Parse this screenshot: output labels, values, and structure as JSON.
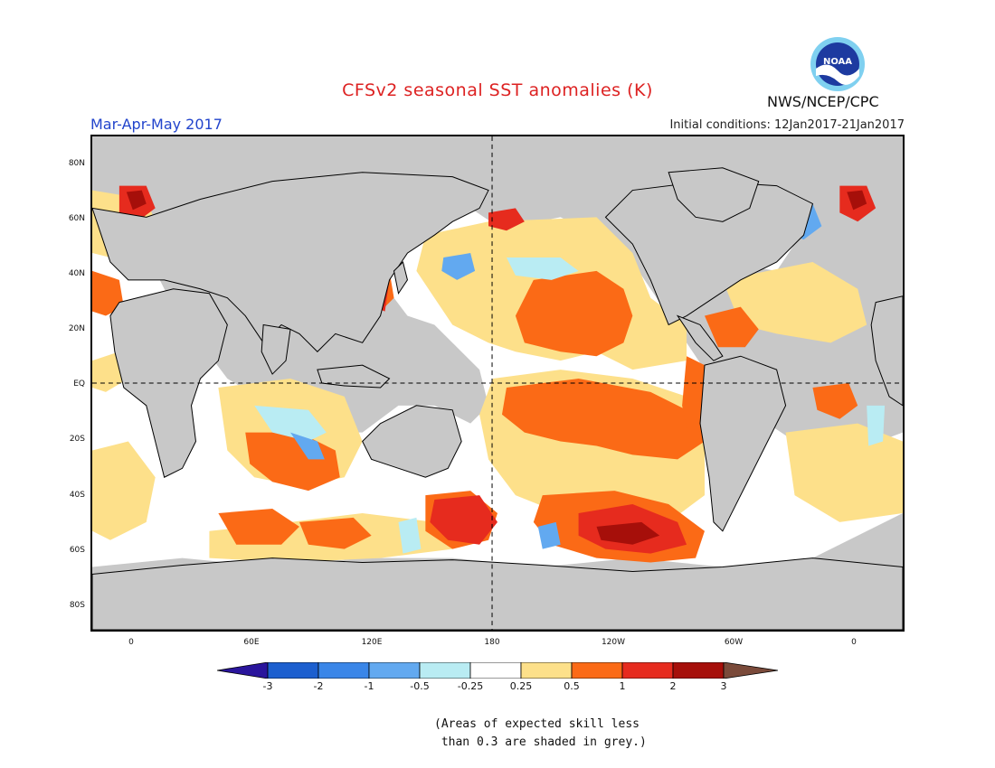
{
  "header": {
    "title": "CFSv2 seasonal SST anomalies (K)",
    "season": "Mar-Apr-May 2017",
    "initial_conditions": "Initial conditions: 12Jan2017-21Jan2017",
    "org": "NWS/NCEP/CPC",
    "logo_text": "NOAA"
  },
  "colors": {
    "title": "#dd2222",
    "season": "#2244cc",
    "land": "#c8c8c8",
    "ocean_neutral": "#ffffff",
    "light_orange": "#fde08a",
    "orange": "#fb6a16",
    "red": "#e62b1e",
    "dark_red": "#a60f0a",
    "light_blue": "#b9ecf3",
    "mid_blue": "#5fa7ef",
    "blue": "#3278e6"
  },
  "map": {
    "lat_labels": [
      "80N",
      "60N",
      "40N",
      "20N",
      "EQ",
      "20S",
      "40S",
      "60S",
      "80S"
    ],
    "lon_labels": [
      "0",
      "60E",
      "120E",
      "180",
      "120W",
      "60W",
      "0"
    ]
  },
  "colorbar": {
    "labels": [
      "-3",
      "-2",
      "-1",
      "-0.5",
      "-0.25",
      "0.25",
      "0.5",
      "1",
      "2",
      "3"
    ],
    "colors": [
      "#2a159c",
      "#1c5fcf",
      "#3a86e8",
      "#62a9f0",
      "#b9ecf3",
      "#ffffff",
      "#fde08a",
      "#fb6a16",
      "#e62b1e",
      "#a60f0a",
      "#7a4a3a"
    ]
  },
  "note": {
    "line1": "(Areas of expected skill less",
    "line2": " than 0.3 are shaded in grey.)"
  }
}
